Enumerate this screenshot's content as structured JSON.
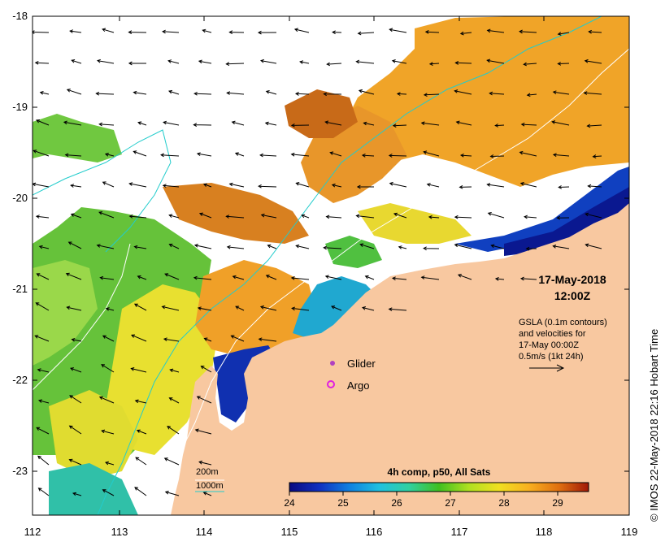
{
  "map": {
    "x_ticks": [
      "112",
      "113",
      "114",
      "115",
      "116",
      "117",
      "118",
      "119"
    ],
    "y_ticks": [
      "-18",
      "-19",
      "-20",
      "-21",
      "-22",
      "-23"
    ],
    "date": "17-May-2018",
    "time": "12:00Z",
    "gsla_lines": [
      "GSLA (0.1m contours)",
      "and velocities for",
      "17-May 00:00Z",
      "0.5m/s (1kt 24h)"
    ],
    "glider_label": "Glider",
    "argo_label": "Argo",
    "contour_200": "200m",
    "contour_1000": "1000m",
    "colorbar_title": "4h comp, p50, All Sats",
    "colorbar_ticks": [
      "24",
      "25",
      "26",
      "27",
      "28",
      "29"
    ],
    "credit": "© IMOS 22-May-2018 22:16 Hobart Time"
  },
  "colors": {
    "land": "#f8c8a0",
    "bathy_200": "#ffffff",
    "bathy_1000": "#22cccc",
    "glider": "#b040c0",
    "argo": "#e020e0"
  }
}
